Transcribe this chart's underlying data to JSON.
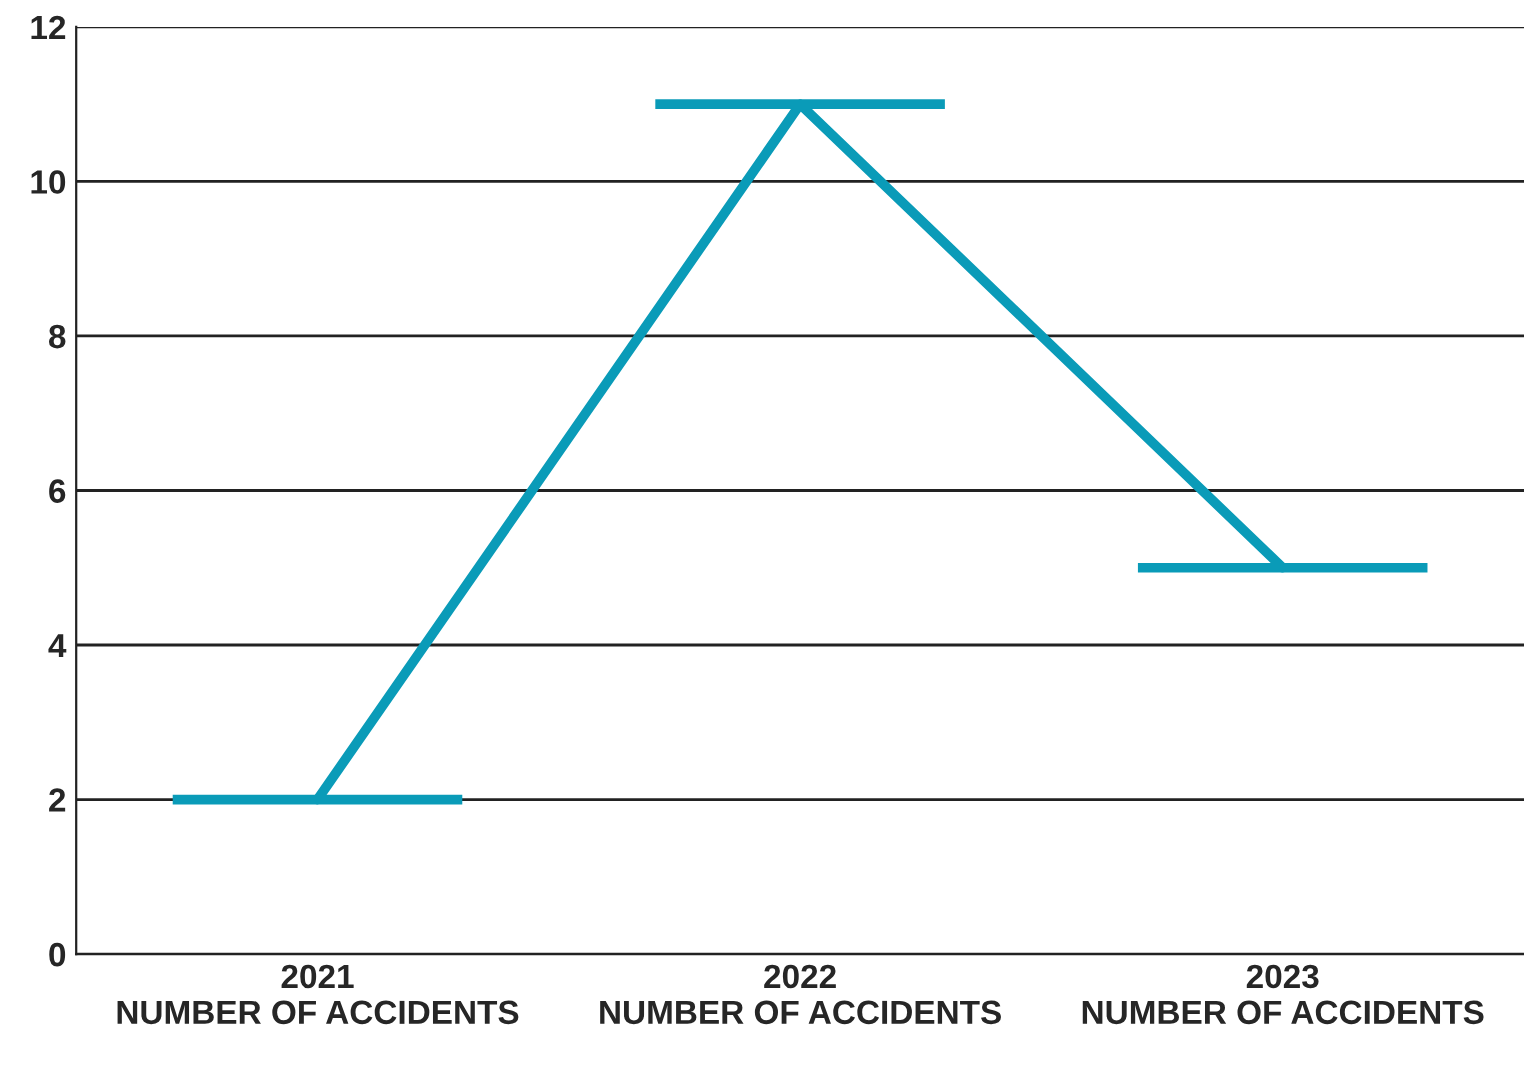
{
  "chart_data": {
    "type": "line",
    "categories": [
      "2021\nNUMBER OF ACCIDENTS",
      "2022\nNUMBER OF ACCIDENTS",
      "2023\nNUMBER OF ACCIDENTS"
    ],
    "series": [
      {
        "color": "#0a9bb8",
        "values": [
          2,
          11,
          5
        ]
      }
    ],
    "ylim": [
      0,
      12
    ],
    "yticks": [
      0,
      2,
      4,
      6,
      8,
      10,
      12
    ],
    "grid": "y",
    "line_style": "solid"
  }
}
